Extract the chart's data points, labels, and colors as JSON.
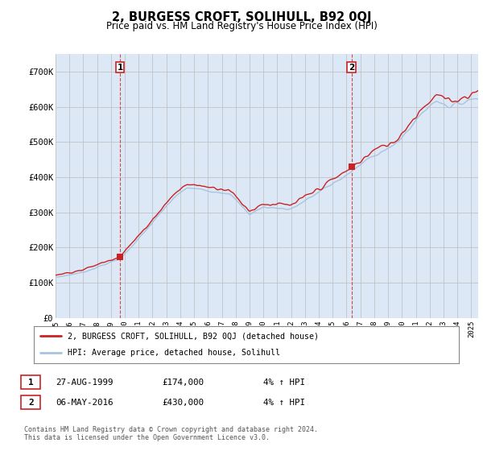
{
  "title": "2, BURGESS CROFT, SOLIHULL, B92 0QJ",
  "subtitle": "Price paid vs. HM Land Registry's House Price Index (HPI)",
  "ylim": [
    0,
    750000
  ],
  "yticks": [
    0,
    100000,
    200000,
    300000,
    400000,
    500000,
    600000,
    700000
  ],
  "ytick_labels": [
    "£0",
    "£100K",
    "£200K",
    "£300K",
    "£400K",
    "£500K",
    "£600K",
    "£700K"
  ],
  "hpi_color": "#a8c4e0",
  "price_color": "#cc2222",
  "marker_color": "#cc2222",
  "grid_color": "#bbbbbb",
  "chart_bg": "#dce8f5",
  "background_color": "#ffffff",
  "purchase1_date": 1999.65,
  "purchase1_price": 174000,
  "purchase1_label": "1",
  "purchase2_date": 2016.35,
  "purchase2_price": 430000,
  "purchase2_label": "2",
  "legend_line1": "2, BURGESS CROFT, SOLIHULL, B92 0QJ (detached house)",
  "legend_line2": "HPI: Average price, detached house, Solihull",
  "table_row1_num": "1",
  "table_row1_date": "27-AUG-1999",
  "table_row1_price": "£174,000",
  "table_row1_hpi": "4% ↑ HPI",
  "table_row2_num": "2",
  "table_row2_date": "06-MAY-2016",
  "table_row2_price": "£430,000",
  "table_row2_hpi": "4% ↑ HPI",
  "footer": "Contains HM Land Registry data © Crown copyright and database right 2024.\nThis data is licensed under the Open Government Licence v3.0.",
  "xmin": 1995.0,
  "xmax": 2025.5
}
